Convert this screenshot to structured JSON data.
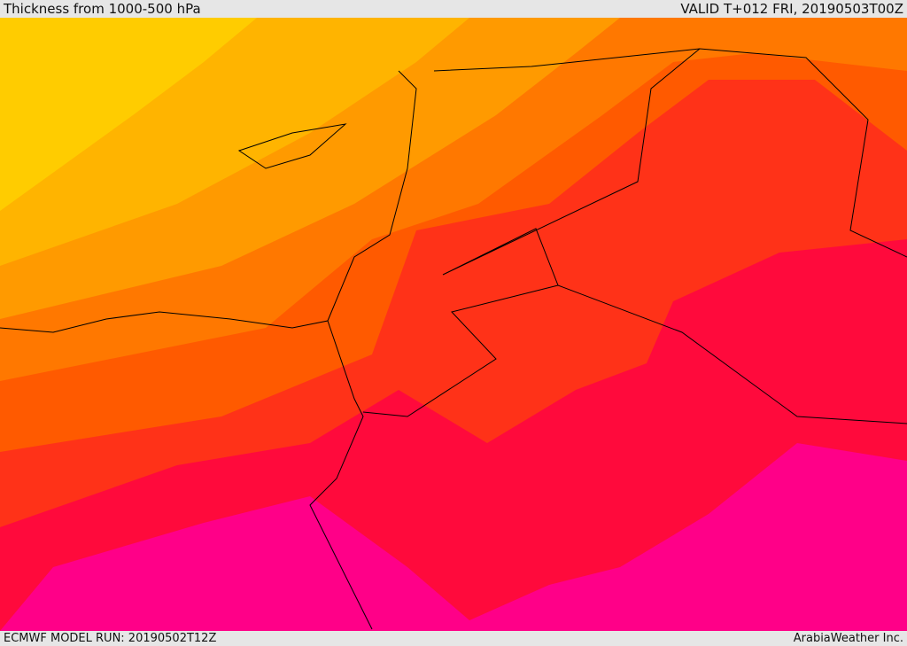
{
  "header": {
    "title": "Thickness from 1000-500 hPa",
    "valid": "VALID T+012 FRI, 20190503T00Z"
  },
  "footer": {
    "model_run": "ECMWF MODEL RUN: 20190502T12Z",
    "credit": "ArabiaWeather Inc."
  }
}
